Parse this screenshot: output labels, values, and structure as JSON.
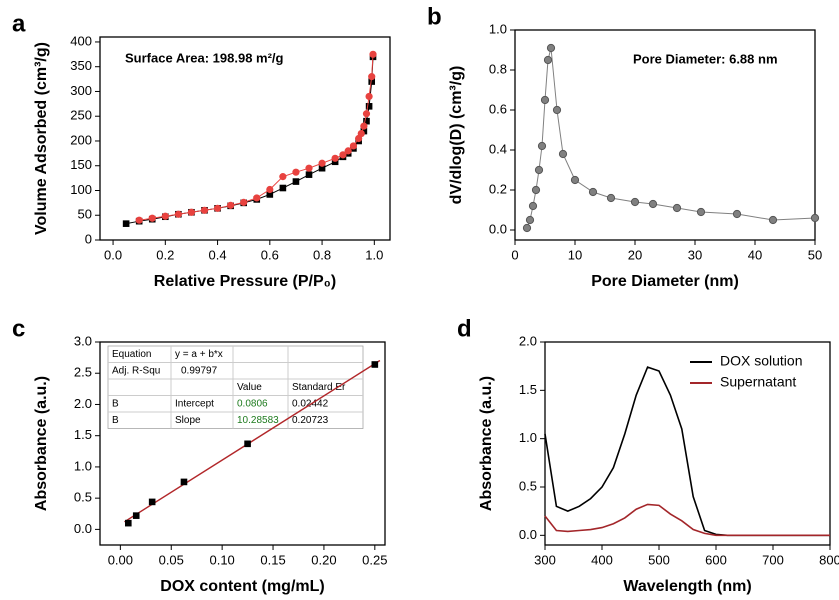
{
  "chart_data": [
    {
      "type": "line",
      "panel_label": "a",
      "annotation": "Surface Area: 198.98 m²/g",
      "xlabel": "Relative Pressure (P/P₀)",
      "ylabel": "Volume Adsorbed (cm³/g)",
      "xlim": [
        -0.05,
        1.06
      ],
      "ylim": [
        0,
        410
      ],
      "xticks": [
        {
          "value": 0,
          "label": "0.0"
        },
        0.2,
        0.4,
        0.6,
        0.8,
        {
          "value": 1,
          "label": "1.0"
        }
      ],
      "yticks": [
        0,
        50,
        100,
        150,
        200,
        250,
        300,
        350,
        400
      ],
      "series": [
        {
          "color": "#000000",
          "marker": "square",
          "x": [
            0.05,
            0.1,
            0.15,
            0.2,
            0.25,
            0.3,
            0.35,
            0.4,
            0.45,
            0.5,
            0.55,
            0.6,
            0.65,
            0.7,
            0.75,
            0.8,
            0.85,
            0.88,
            0.9,
            0.92,
            0.94,
            0.96,
            0.97,
            0.98,
            0.99,
            0.995
          ],
          "values": [
            33,
            38,
            42,
            47,
            52,
            56,
            60,
            64,
            69,
            75,
            82,
            92,
            105,
            118,
            132,
            145,
            158,
            168,
            175,
            185,
            200,
            220,
            240,
            270,
            320,
            370
          ]
        },
        {
          "color": "#e8423f",
          "marker": "circle",
          "x": [
            0.995,
            0.99,
            0.98,
            0.97,
            0.96,
            0.95,
            0.94,
            0.92,
            0.9,
            0.88,
            0.85,
            0.8,
            0.75,
            0.7,
            0.65,
            0.6,
            0.55,
            0.5,
            0.45,
            0.4,
            0.35,
            0.3,
            0.25,
            0.2,
            0.15,
            0.1
          ],
          "values": [
            375,
            330,
            290,
            255,
            230,
            215,
            205,
            190,
            180,
            172,
            165,
            155,
            145,
            137,
            128,
            102,
            85,
            76,
            70,
            64,
            60,
            56,
            52,
            48,
            44,
            40
          ]
        }
      ]
    },
    {
      "type": "line",
      "panel_label": "b",
      "annotation": "Pore Diameter: 6.88 nm",
      "xlabel": "Pore Diameter (nm)",
      "ylabel": "dV/dlog(D) (cm³/g)",
      "xlim": [
        0,
        50
      ],
      "ylim": [
        -0.05,
        1.0
      ],
      "xticks": [
        0,
        10,
        20,
        30,
        40,
        50
      ],
      "yticks": [
        {
          "value": 0,
          "label": "0.0"
        },
        0.2,
        0.4,
        0.6,
        0.8,
        {
          "value": 1,
          "label": "1.0"
        }
      ],
      "series": [
        {
          "color": "#808080",
          "marker": "circle",
          "x": [
            2,
            2.5,
            3,
            3.5,
            4,
            4.5,
            5,
            5.5,
            6,
            7,
            8,
            10,
            13,
            16,
            20,
            23,
            27,
            31,
            37,
            43,
            50
          ],
          "values": [
            0.01,
            0.05,
            0.12,
            0.2,
            0.3,
            0.42,
            0.65,
            0.85,
            0.91,
            0.6,
            0.38,
            0.25,
            0.19,
            0.16,
            0.14,
            0.13,
            0.11,
            0.09,
            0.08,
            0.05,
            0.06
          ]
        }
      ]
    },
    {
      "type": "scatter",
      "panel_label": "c",
      "xlabel": "DOX content (mg/mL)",
      "ylabel": "Absorbance (a.u.)",
      "xlim": [
        -0.02,
        0.26
      ],
      "ylim": [
        -0.25,
        3.0
      ],
      "xticks": [
        {
          "value": 0,
          "label": "0.00"
        },
        0.05,
        {
          "value": 0.1,
          "label": "0.10"
        },
        0.15,
        {
          "value": 0.2,
          "label": "0.20"
        },
        0.25
      ],
      "yticks": [
        {
          "value": 0,
          "label": "0.0"
        },
        0.5,
        {
          "value": 1,
          "label": "1.0"
        },
        1.5,
        {
          "value": 2,
          "label": "2.0"
        },
        2.5,
        {
          "value": 3,
          "label": "3.0"
        }
      ],
      "fit_color": "#b2272a",
      "table": {
        "equation_label": "Equation",
        "equation": "y = a + b*x",
        "r2_label": "Adj. R-Squ",
        "r2": 0.99797,
        "headers": [
          "Value",
          "Standard Er"
        ],
        "rows": [
          {
            "name": "B",
            "param": "Intercept",
            "value": 0.0806,
            "error": 0.02442
          },
          {
            "name": "B",
            "param": "Slope",
            "value": 10.28583,
            "error": 0.20723
          }
        ]
      },
      "series": [
        {
          "color": "#000000",
          "marker": "square",
          "x": [
            0.0078,
            0.0156,
            0.03125,
            0.0625,
            0.125,
            0.25
          ],
          "values": [
            0.1,
            0.22,
            0.44,
            0.76,
            1.37,
            2.64
          ]
        }
      ]
    },
    {
      "type": "line",
      "panel_label": "d",
      "legend": "upper right",
      "xlabel": "Wavelength (nm)",
      "ylabel": "Absorbance (a.u.)",
      "xlim": [
        300,
        800
      ],
      "ylim": [
        -0.1,
        2.0
      ],
      "xticks": [
        300,
        400,
        500,
        600,
        700,
        800
      ],
      "yticks": [
        {
          "value": 0,
          "label": "0.0"
        },
        0.5,
        {
          "value": 1,
          "label": "1.0"
        },
        1.5,
        {
          "value": 2,
          "label": "2.0"
        }
      ],
      "x": [
        300,
        320,
        340,
        360,
        380,
        400,
        420,
        440,
        460,
        480,
        500,
        520,
        540,
        560,
        580,
        600,
        620,
        640,
        660,
        680,
        700,
        720,
        740,
        760,
        780,
        800
      ],
      "series": [
        {
          "name": "DOX solution",
          "color": "#000000",
          "values": [
            1.05,
            0.3,
            0.25,
            0.3,
            0.38,
            0.5,
            0.7,
            1.05,
            1.45,
            1.74,
            1.7,
            1.45,
            1.1,
            0.4,
            0.05,
            0.01,
            0,
            0,
            0,
            0,
            0,
            0,
            0,
            0,
            0,
            0
          ]
        },
        {
          "name": "Supernatant",
          "color": "#a3262a",
          "values": [
            0.2,
            0.05,
            0.04,
            0.05,
            0.06,
            0.08,
            0.12,
            0.18,
            0.27,
            0.32,
            0.31,
            0.22,
            0.15,
            0.06,
            0.02,
            0,
            0,
            0,
            0,
            0,
            0,
            0,
            0,
            0,
            0,
            0
          ]
        }
      ]
    }
  ]
}
